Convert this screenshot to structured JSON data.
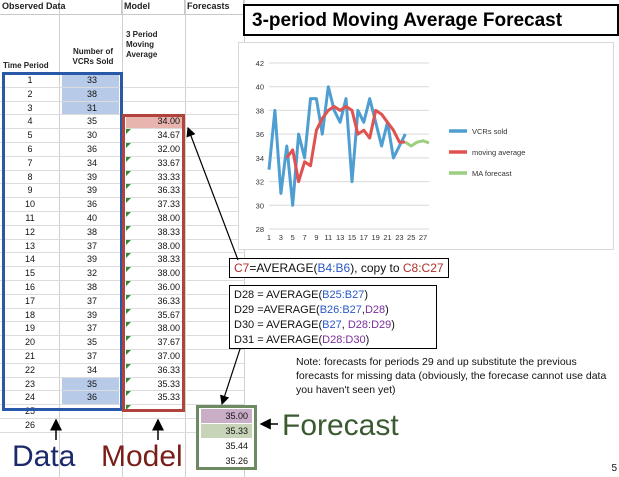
{
  "sheet": {
    "group_headers": {
      "observed": "Observed Data",
      "model": "Model",
      "forecasts": "Forecasts"
    },
    "col_headers": {
      "period": "Time Period",
      "vcrs": [
        "Number of",
        "VCRs Sold"
      ],
      "model": [
        "3 Period",
        "Moving",
        "Average"
      ]
    },
    "rows": [
      {
        "period": "1",
        "vcrs": "33",
        "model": ""
      },
      {
        "period": "2",
        "vcrs": "38",
        "model": ""
      },
      {
        "period": "3",
        "vcrs": "31",
        "model": ""
      },
      {
        "period": "4",
        "vcrs": "35",
        "model": "34.00"
      },
      {
        "period": "5",
        "vcrs": "30",
        "model": "34.67"
      },
      {
        "period": "6",
        "vcrs": "36",
        "model": "32.00"
      },
      {
        "period": "7",
        "vcrs": "34",
        "model": "33.67"
      },
      {
        "period": "8",
        "vcrs": "39",
        "model": "33.33"
      },
      {
        "period": "9",
        "vcrs": "39",
        "model": "36.33"
      },
      {
        "period": "10",
        "vcrs": "36",
        "model": "37.33"
      },
      {
        "period": "11",
        "vcrs": "40",
        "model": "38.00"
      },
      {
        "period": "12",
        "vcrs": "38",
        "model": "38.33"
      },
      {
        "period": "13",
        "vcrs": "37",
        "model": "38.00"
      },
      {
        "period": "14",
        "vcrs": "39",
        "model": "38.33"
      },
      {
        "period": "15",
        "vcrs": "32",
        "model": "38.00"
      },
      {
        "period": "16",
        "vcrs": "38",
        "model": "36.00"
      },
      {
        "period": "17",
        "vcrs": "37",
        "model": "36.33"
      },
      {
        "period": "18",
        "vcrs": "39",
        "model": "35.67"
      },
      {
        "period": "19",
        "vcrs": "37",
        "model": "38.00"
      },
      {
        "period": "20",
        "vcrs": "35",
        "model": "37.67"
      },
      {
        "period": "21",
        "vcrs": "37",
        "model": "37.00"
      },
      {
        "period": "22",
        "vcrs": "34",
        "model": "36.33"
      },
      {
        "period": "23",
        "vcrs": "35",
        "model": "35.33"
      },
      {
        "period": "24",
        "vcrs": "36",
        "model": "35.33"
      },
      {
        "period": "25",
        "vcrs": "",
        "model": ""
      },
      {
        "period": "26",
        "vcrs": "",
        "model": ""
      }
    ],
    "forecasts": [
      "35.00",
      "35.33",
      "35.44",
      "35.26"
    ]
  },
  "title": "3-period Moving Average Forecast",
  "chart_data": {
    "type": "line",
    "x": [
      1,
      2,
      3,
      4,
      5,
      6,
      7,
      8,
      9,
      10,
      11,
      12,
      13,
      14,
      15,
      16,
      17,
      18,
      19,
      20,
      21,
      22,
      23,
      24,
      25,
      26,
      27,
      28
    ],
    "xticks": [
      "1",
      "3",
      "5",
      "7",
      "9",
      "11",
      "13",
      "15",
      "17",
      "19",
      "21",
      "23",
      "25",
      "27"
    ],
    "yticks": [
      "28",
      "30",
      "32",
      "34",
      "36",
      "38",
      "40",
      "42"
    ],
    "ylim": [
      28,
      42
    ],
    "series": [
      {
        "name": "VCRs sold",
        "color": "#4f9ed1",
        "points": [
          [
            1,
            33
          ],
          [
            2,
            38
          ],
          [
            3,
            31
          ],
          [
            4,
            35
          ],
          [
            5,
            30
          ],
          [
            6,
            36
          ],
          [
            7,
            34
          ],
          [
            8,
            39
          ],
          [
            9,
            39
          ],
          [
            10,
            36
          ],
          [
            11,
            40
          ],
          [
            12,
            38
          ],
          [
            13,
            37
          ],
          [
            14,
            39
          ],
          [
            15,
            32
          ],
          [
            16,
            38
          ],
          [
            17,
            37
          ],
          [
            18,
            39
          ],
          [
            19,
            37
          ],
          [
            20,
            35
          ],
          [
            21,
            37
          ],
          [
            22,
            34
          ],
          [
            23,
            35
          ],
          [
            24,
            36
          ]
        ]
      },
      {
        "name": "moving average",
        "color": "#e0524f",
        "points": [
          [
            4,
            34
          ],
          [
            5,
            34.67
          ],
          [
            6,
            32
          ],
          [
            7,
            33.67
          ],
          [
            8,
            33.33
          ],
          [
            9,
            36.33
          ],
          [
            10,
            37.33
          ],
          [
            11,
            38
          ],
          [
            12,
            38.33
          ],
          [
            13,
            38
          ],
          [
            14,
            38.33
          ],
          [
            15,
            38
          ],
          [
            16,
            36
          ],
          [
            17,
            36.33
          ],
          [
            18,
            35.67
          ],
          [
            19,
            38
          ],
          [
            20,
            37.67
          ],
          [
            21,
            37
          ],
          [
            22,
            36.33
          ],
          [
            23,
            35.33
          ],
          [
            24,
            35.33
          ]
        ]
      },
      {
        "name": "MA forecast",
        "color": "#9bcf7f",
        "points": [
          [
            24,
            35.33
          ],
          [
            25,
            35
          ],
          [
            26,
            35.33
          ],
          [
            27,
            35.44
          ],
          [
            28,
            35.26
          ]
        ]
      }
    ]
  },
  "formula_main": {
    "lhs": "C7",
    "eq": "=AVERAGE(",
    "arg": "B4:B6",
    "tail": "), copy to ",
    "target": "C8:C27"
  },
  "formulas": [
    {
      "lhs": "D28 = AVERAGE(",
      "p1": "B25:B27",
      "sep": "",
      "p2": "",
      "end": ")"
    },
    {
      "lhs": "D29 =AVERAGE(",
      "p1": "B26:B27",
      "sep": ",",
      "p2": "D28",
      "end": ")"
    },
    {
      "lhs": "D30 = AVERAGE(",
      "p1": "B27",
      "sep": ", ",
      "p2": "D28:D29",
      "end": ")"
    },
    {
      "lhs": "D31 = AVERAGE(",
      "p1": "",
      "sep": "",
      "p2": "D28:D30",
      "end": ")"
    }
  ],
  "note": "Note: forecasts for periods 29 and up substitute the previous forecasts for missing data (obviously, the forecase cannot use data you haven't seen yet)",
  "labels": {
    "data": "Data",
    "model": "Model",
    "forecast": "Forecast"
  },
  "colors": {
    "data": "#1b2a6b",
    "model": "#7a1e1a",
    "forecast": "#3b5a30"
  },
  "page_number": "5"
}
